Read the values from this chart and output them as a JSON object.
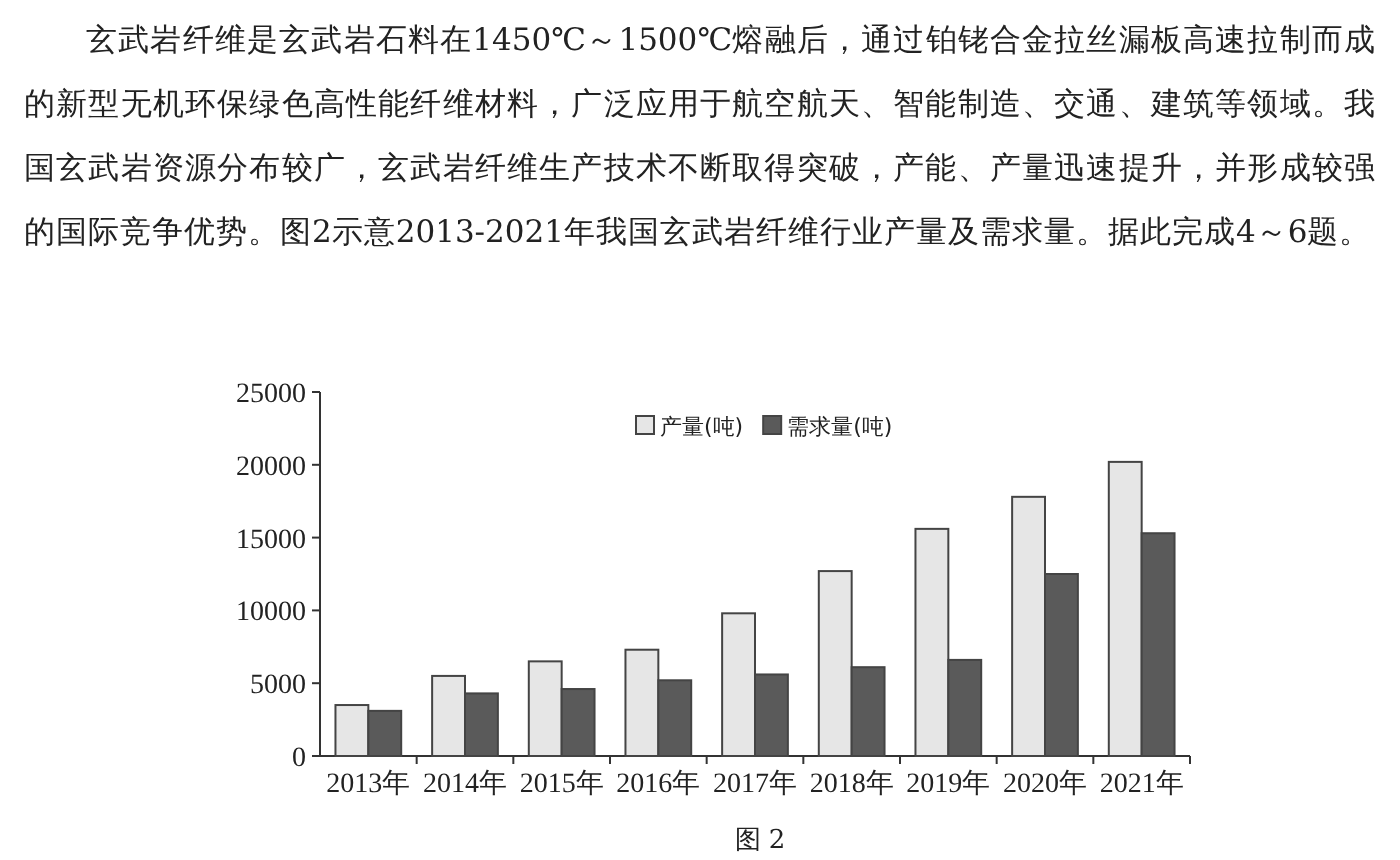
{
  "chart_data": {
    "type": "bar",
    "annotations": [
      "玄武岩纤维是玄武岩石料在1450℃～1500℃熔融后，通过铂铑合金拉丝漏板高速拉制而成的新型无机环保绿色高性能纤维材料，广泛应用于航空航天、智能制造、交通、建筑等领域。我国玄武岩资源分布较广，玄武岩纤维生产技术不断取得突破，产能、产量迅速提升，并形成较强的国际竞争优势。图2示意2013-2021年我国玄武岩纤维行业产量及需求量。据此完成4～6题。",
      "图 2"
    ],
    "categories": [
      "2013年",
      "2014年",
      "2015年",
      "2016年",
      "2017年",
      "2018年",
      "2019年",
      "2020年",
      "2021年"
    ],
    "series": [
      {
        "name": "产量(吨)",
        "color": "#e6e6e6",
        "values": [
          3500,
          5500,
          6500,
          7300,
          9800,
          12700,
          15600,
          17800,
          20200
        ]
      },
      {
        "name": "需求量(吨)",
        "color": "#5a5a5a",
        "values": [
          3100,
          4300,
          4600,
          5200,
          5600,
          6100,
          6600,
          12500,
          15300
        ]
      }
    ],
    "ylim": [
      0,
      25000
    ],
    "yticks": [
      0,
      5000,
      10000,
      15000,
      20000,
      25000
    ],
    "legend": "top",
    "grid": false
  }
}
